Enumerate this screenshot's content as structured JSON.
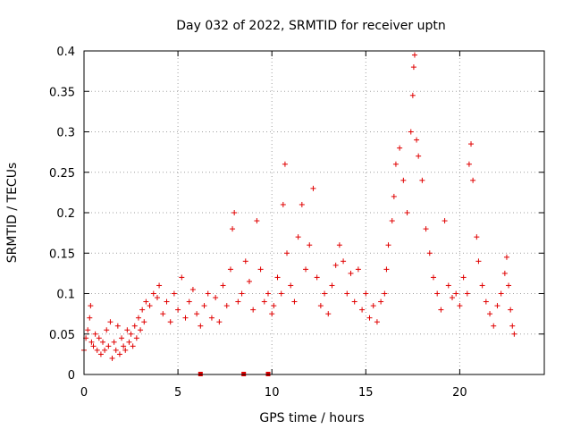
{
  "chart_data": {
    "type": "scatter",
    "title": "Day 032 of 2022, SRMTID for receiver uptn",
    "xlabel": "GPS time / hours",
    "ylabel": "SRMTID / TECUs",
    "xlim": [
      0,
      24.5
    ],
    "ylim": [
      0,
      0.4
    ],
    "x_ticks": [
      0,
      5,
      10,
      15,
      20
    ],
    "x_tick_labels": [
      "0",
      "5",
      "10",
      "15",
      "20"
    ],
    "y_ticks": [
      0,
      0.05,
      0.1,
      0.15,
      0.2,
      0.25,
      0.3,
      0.35,
      0.4
    ],
    "y_tick_labels": [
      "0",
      "0.05",
      "0.1",
      "0.15",
      "0.2",
      "0.25",
      "0.3",
      "0.35",
      "0.4"
    ],
    "grid": true,
    "series": [
      {
        "name": "SRMTID",
        "color": "#e00000",
        "marker": "plus",
        "points": [
          [
            0.0,
            0.03
          ],
          [
            0.1,
            0.045
          ],
          [
            0.2,
            0.055
          ],
          [
            0.3,
            0.07
          ],
          [
            0.35,
            0.085
          ],
          [
            0.4,
            0.04
          ],
          [
            0.5,
            0.035
          ],
          [
            0.6,
            0.05
          ],
          [
            0.7,
            0.03
          ],
          [
            0.8,
            0.045
          ],
          [
            0.9,
            0.025
          ],
          [
            1.0,
            0.04
          ],
          [
            1.1,
            0.03
          ],
          [
            1.2,
            0.055
          ],
          [
            1.3,
            0.035
          ],
          [
            1.4,
            0.065
          ],
          [
            1.5,
            0.02
          ],
          [
            1.6,
            0.04
          ],
          [
            1.7,
            0.03
          ],
          [
            1.8,
            0.06
          ],
          [
            1.9,
            0.025
          ],
          [
            2.0,
            0.045
          ],
          [
            2.1,
            0.035
          ],
          [
            2.2,
            0.03
          ],
          [
            2.3,
            0.055
          ],
          [
            2.4,
            0.04
          ],
          [
            2.5,
            0.05
          ],
          [
            2.6,
            0.035
          ],
          [
            2.7,
            0.06
          ],
          [
            2.8,
            0.045
          ],
          [
            2.9,
            0.07
          ],
          [
            3.0,
            0.055
          ],
          [
            3.1,
            0.08
          ],
          [
            3.2,
            0.065
          ],
          [
            3.3,
            0.09
          ],
          [
            3.5,
            0.085
          ],
          [
            3.7,
            0.1
          ],
          [
            3.9,
            0.095
          ],
          [
            4.0,
            0.11
          ],
          [
            4.2,
            0.075
          ],
          [
            4.4,
            0.09
          ],
          [
            4.6,
            0.065
          ],
          [
            4.8,
            0.1
          ],
          [
            5.0,
            0.08
          ],
          [
            5.2,
            0.12
          ],
          [
            5.4,
            0.07
          ],
          [
            5.6,
            0.09
          ],
          [
            5.8,
            0.105
          ],
          [
            6.0,
            0.075
          ],
          [
            6.2,
            0.06
          ],
          [
            6.4,
            0.085
          ],
          [
            6.6,
            0.1
          ],
          [
            6.8,
            0.07
          ],
          [
            7.0,
            0.095
          ],
          [
            7.2,
            0.065
          ],
          [
            7.4,
            0.11
          ],
          [
            7.6,
            0.085
          ],
          [
            7.8,
            0.13
          ],
          [
            7.9,
            0.18
          ],
          [
            8.0,
            0.2
          ],
          [
            8.2,
            0.09
          ],
          [
            8.4,
            0.1
          ],
          [
            8.6,
            0.14
          ],
          [
            8.8,
            0.115
          ],
          [
            9.0,
            0.08
          ],
          [
            9.2,
            0.19
          ],
          [
            9.4,
            0.13
          ],
          [
            9.6,
            0.09
          ],
          [
            9.8,
            0.1
          ],
          [
            10.0,
            0.075
          ],
          [
            10.1,
            0.085
          ],
          [
            10.3,
            0.12
          ],
          [
            10.5,
            0.1
          ],
          [
            10.6,
            0.21
          ],
          [
            10.7,
            0.26
          ],
          [
            10.8,
            0.15
          ],
          [
            11.0,
            0.11
          ],
          [
            11.2,
            0.09
          ],
          [
            11.4,
            0.17
          ],
          [
            11.6,
            0.21
          ],
          [
            11.8,
            0.13
          ],
          [
            12.0,
            0.16
          ],
          [
            12.2,
            0.23
          ],
          [
            12.4,
            0.12
          ],
          [
            12.6,
            0.085
          ],
          [
            12.8,
            0.1
          ],
          [
            13.0,
            0.075
          ],
          [
            13.2,
            0.11
          ],
          [
            13.4,
            0.135
          ],
          [
            13.6,
            0.16
          ],
          [
            13.8,
            0.14
          ],
          [
            14.0,
            0.1
          ],
          [
            14.2,
            0.125
          ],
          [
            14.4,
            0.09
          ],
          [
            14.6,
            0.13
          ],
          [
            14.8,
            0.08
          ],
          [
            15.0,
            0.1
          ],
          [
            15.2,
            0.07
          ],
          [
            15.4,
            0.085
          ],
          [
            15.6,
            0.065
          ],
          [
            15.8,
            0.09
          ],
          [
            16.0,
            0.1
          ],
          [
            16.1,
            0.13
          ],
          [
            16.2,
            0.16
          ],
          [
            16.4,
            0.19
          ],
          [
            16.5,
            0.22
          ],
          [
            16.6,
            0.26
          ],
          [
            16.8,
            0.28
          ],
          [
            17.0,
            0.24
          ],
          [
            17.2,
            0.2
          ],
          [
            17.4,
            0.3
          ],
          [
            17.5,
            0.345
          ],
          [
            17.55,
            0.38
          ],
          [
            17.6,
            0.395
          ],
          [
            17.7,
            0.29
          ],
          [
            17.8,
            0.27
          ],
          [
            18.0,
            0.24
          ],
          [
            18.2,
            0.18
          ],
          [
            18.4,
            0.15
          ],
          [
            18.6,
            0.12
          ],
          [
            18.8,
            0.1
          ],
          [
            19.0,
            0.08
          ],
          [
            19.2,
            0.19
          ],
          [
            19.4,
            0.11
          ],
          [
            19.6,
            0.095
          ],
          [
            19.8,
            0.1
          ],
          [
            20.0,
            0.085
          ],
          [
            20.2,
            0.12
          ],
          [
            20.4,
            0.1
          ],
          [
            20.5,
            0.26
          ],
          [
            20.6,
            0.285
          ],
          [
            20.7,
            0.24
          ],
          [
            20.9,
            0.17
          ],
          [
            21.0,
            0.14
          ],
          [
            21.2,
            0.11
          ],
          [
            21.4,
            0.09
          ],
          [
            21.6,
            0.075
          ],
          [
            21.8,
            0.06
          ],
          [
            22.0,
            0.085
          ],
          [
            22.2,
            0.1
          ],
          [
            22.4,
            0.125
          ],
          [
            22.5,
            0.145
          ],
          [
            22.6,
            0.11
          ],
          [
            22.7,
            0.08
          ],
          [
            22.8,
            0.06
          ],
          [
            22.9,
            0.05
          ]
        ]
      }
    ],
    "zero_markers": [
      6.2,
      8.5,
      9.8
    ]
  }
}
